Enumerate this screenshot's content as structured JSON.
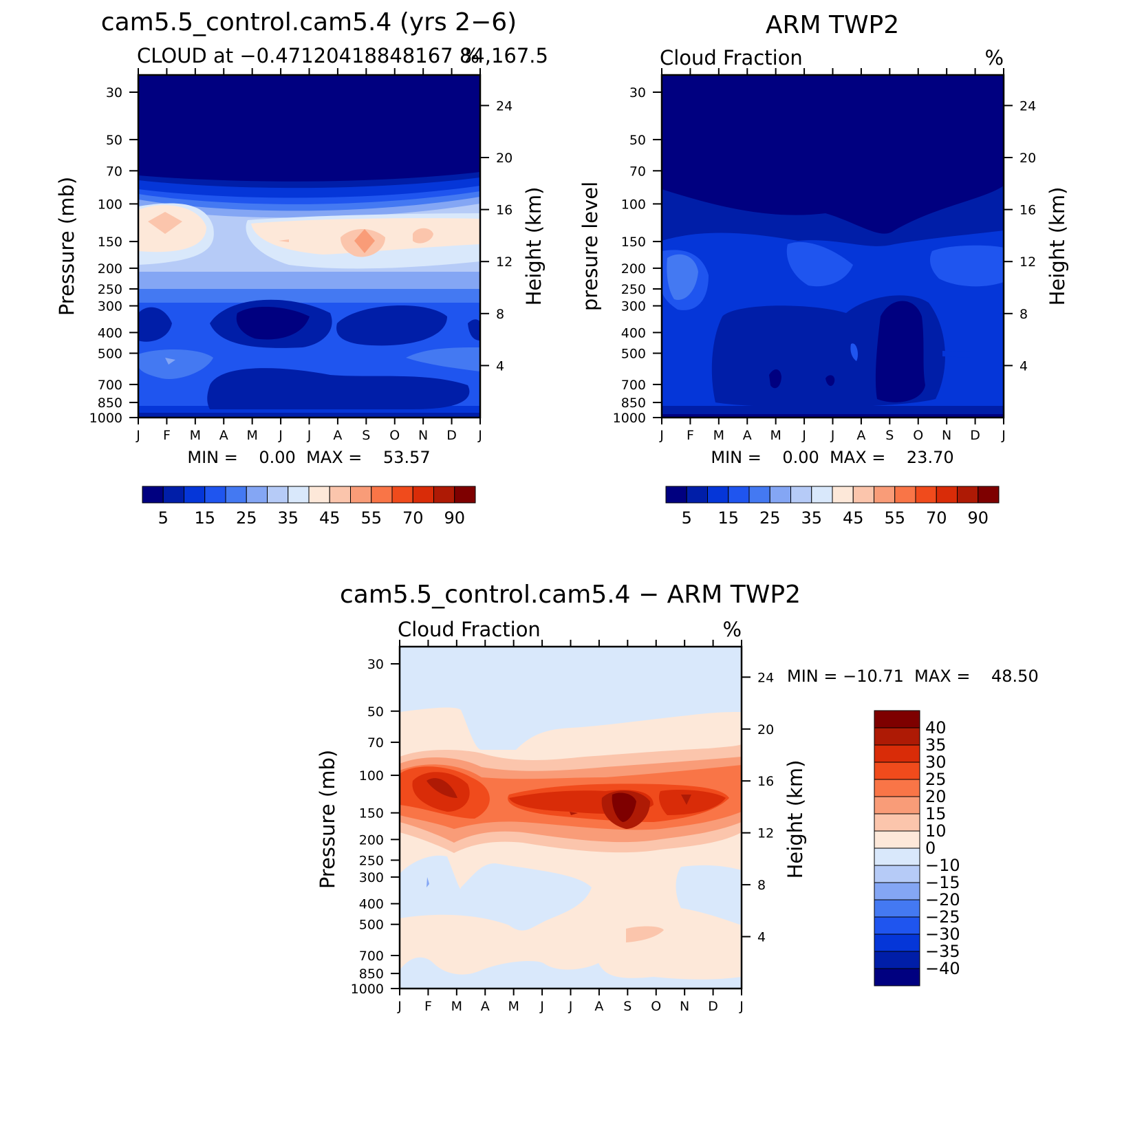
{
  "chart_data": [
    {
      "type": "heatmap",
      "title": "cam5.5_control.cam5.4 (yrs 2−6)",
      "subtitle_left": "CLOUD at −0.47120418848167 84,167.5",
      "subtitle_right": "%",
      "ylabel_left": "Pressure (mb)",
      "ylabel_right": "Height (km)",
      "x_ticks": [
        "J",
        "F",
        "M",
        "A",
        "M",
        "J",
        "J",
        "A",
        "S",
        "O",
        "N",
        "D",
        "J"
      ],
      "y_ticks_pressure": [
        30,
        50,
        70,
        100,
        150,
        200,
        250,
        300,
        400,
        500,
        700,
        850,
        1000
      ],
      "y_ticks_height": [
        24,
        20,
        16,
        12,
        8,
        4
      ],
      "stats_text": "MIN =    0.00  MAX =    53.57",
      "min": 0.0,
      "max": 53.57,
      "colorbar": {
        "orientation": "horizontal",
        "labels": [
          "5",
          "15",
          "25",
          "35",
          "45",
          "55",
          "70",
          "90"
        ],
        "colors": [
          "#000080",
          "#001ea8",
          "#0536d8",
          "#1f55ef",
          "#4479f2",
          "#84a6f4",
          "#b6cbf7",
          "#d9e8fb",
          "#fde8d9",
          "#fbc5ac",
          "#f99c78",
          "#f97547",
          "#f04b1c",
          "#d92c08",
          "#ae1a05",
          "#7e0000"
        ]
      },
      "description": "Cloud fraction annual cycle by pressure level, high cloud maximum near 100-150 mb"
    },
    {
      "type": "heatmap",
      "title": "ARM TWP2",
      "subtitle_left": "Cloud Fraction",
      "subtitle_right": "%",
      "ylabel_left": "presure level",
      "ylabel_right": "Height (km)",
      "x_ticks": [
        "J",
        "F",
        "M",
        "A",
        "M",
        "J",
        "J",
        "A",
        "S",
        "O",
        "N",
        "D",
        "J"
      ],
      "y_ticks_pressure": [
        30,
        50,
        70,
        100,
        150,
        200,
        250,
        300,
        400,
        500,
        700,
        850,
        1000
      ],
      "y_ticks_height": [
        24,
        20,
        16,
        12,
        8,
        4
      ],
      "stats_text": "MIN =    0.00  MAX =    23.70",
      "min": 0.0,
      "max": 23.7,
      "colorbar": {
        "orientation": "horizontal",
        "labels": [
          "5",
          "15",
          "25",
          "35",
          "45",
          "55",
          "70",
          "90"
        ],
        "colors": [
          "#000080",
          "#001ea8",
          "#0536d8",
          "#1f55ef",
          "#4479f2",
          "#84a6f4",
          "#b6cbf7",
          "#d9e8fb",
          "#fde8d9",
          "#fbc5ac",
          "#f99c78",
          "#f97547",
          "#f04b1c",
          "#d92c08",
          "#ae1a05",
          "#7e0000"
        ]
      }
    },
    {
      "type": "heatmap",
      "title": "cam5.5_control.cam5.4 − ARM TWP2",
      "subtitle_left": "Cloud Fraction",
      "subtitle_right": "%",
      "ylabel_left": "Pressure (mb)",
      "ylabel_right": "Height (km)",
      "x_ticks": [
        "J",
        "F",
        "M",
        "A",
        "M",
        "J",
        "J",
        "A",
        "S",
        "O",
        "N",
        "D",
        "J"
      ],
      "y_ticks_pressure": [
        30,
        50,
        70,
        100,
        150,
        200,
        250,
        300,
        400,
        500,
        700,
        850,
        1000
      ],
      "y_ticks_height": [
        24,
        20,
        16,
        12,
        8,
        4
      ],
      "stats_text": "MIN = −10.71  MAX =    48.50",
      "min": -10.71,
      "max": 48.5,
      "colorbar": {
        "orientation": "vertical",
        "labels": [
          "40",
          "35",
          "30",
          "25",
          "20",
          "15",
          "10",
          "0",
          "−10",
          "−15",
          "−20",
          "−25",
          "−30",
          "−35",
          "−40"
        ],
        "colors": [
          "#7e0000",
          "#ae1a05",
          "#d92c08",
          "#f04b1c",
          "#f97547",
          "#f99c78",
          "#fbc5ac",
          "#fde8d9",
          "#d9e8fb",
          "#b6cbf7",
          "#84a6f4",
          "#4479f2",
          "#1f55ef",
          "#0536d8",
          "#001ea8",
          "#000080"
        ]
      }
    }
  ]
}
